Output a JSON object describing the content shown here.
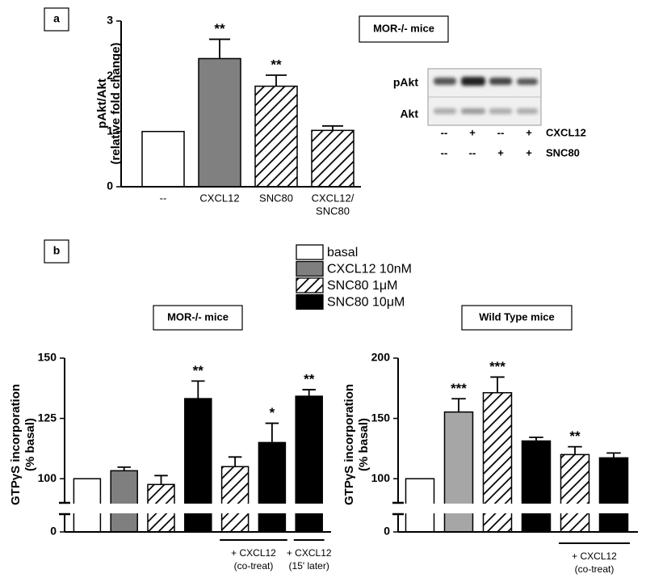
{
  "chart_data": [
    {
      "type": "bar",
      "panel": "a",
      "title": "MOR-/- mice",
      "ylabel": [
        "pAkt/Akt",
        "(relative fold change)"
      ],
      "categories": [
        [
          "--"
        ],
        [
          "CXCL12"
        ],
        [
          "SNC80"
        ],
        [
          "CXCL12/",
          "SNC80"
        ]
      ],
      "values": [
        1,
        2.32,
        1.82,
        1.02
      ],
      "errors": [
        null,
        0.35,
        0.2,
        0.08
      ],
      "stars": [
        null,
        "**",
        "**",
        null
      ],
      "colors": [
        "#ffffff",
        "#808080",
        "#ffffff",
        "#ffffff"
      ],
      "hatched": [
        false,
        false,
        true,
        true
      ],
      "ylim": [
        0,
        3
      ],
      "yticks": [
        0,
        1,
        2,
        3
      ]
    },
    {
      "type": "bar",
      "panel": "b",
      "title": "MOR-/- mice",
      "ylabel": [
        "GTPγS incorporation",
        "(% basal)"
      ],
      "categories": [
        null,
        null,
        null,
        null,
        null,
        null,
        null
      ],
      "series": [
        {
          "name": "basal",
          "color": "#ffffff",
          "hatched": false,
          "values": [
            100,
            null,
            null,
            null,
            null,
            null,
            null
          ],
          "errors": [
            null,
            null,
            null,
            null,
            null,
            null,
            null
          ]
        },
        {
          "name": "CXCL12 10nM",
          "color": "#7f7f7f",
          "hatched": false,
          "values": [
            null,
            103.3,
            null,
            null,
            null,
            null,
            null
          ],
          "errors": [
            null,
            1.5,
            null,
            null,
            null,
            null,
            null
          ]
        },
        {
          "name": "SNC80 1μM",
          "color": "#ffffff",
          "hatched": true,
          "values": [
            null,
            null,
            97.6,
            null,
            105,
            null,
            null
          ],
          "errors": [
            null,
            null,
            3.7,
            null,
            4,
            null,
            null
          ]
        },
        {
          "name": "SNC80 10μM",
          "color": "#000000",
          "hatched": false,
          "values": [
            null,
            null,
            null,
            133.2,
            null,
            115,
            134.2
          ],
          "errors": [
            null,
            null,
            null,
            7.3,
            null,
            8,
            2.7
          ]
        }
      ],
      "stars": [
        null,
        null,
        null,
        "**",
        null,
        "*",
        "**"
      ],
      "groups": [
        {
          "bars": [
            4,
            5
          ],
          "label": [
            "+ CXCL12",
            "(co-treat)"
          ]
        },
        {
          "bars": [
            6,
            6
          ],
          "label": [
            "+ CXCL12",
            "(15' later)"
          ]
        }
      ],
      "ylim": [
        0,
        150
      ],
      "ybreak": [
        10,
        90
      ],
      "yticks": [
        0,
        100,
        125,
        150
      ]
    },
    {
      "type": "bar",
      "title": "Wild Type mice",
      "ylabel": [
        "GTPγS incorporation",
        "(% basal)"
      ],
      "categories": [
        null,
        null,
        null,
        null,
        null,
        null
      ],
      "series": [
        {
          "color": "#ffffff",
          "hatched": false,
          "values": [
            100,
            null,
            null,
            null,
            null,
            null
          ],
          "errors": [
            null,
            null,
            null,
            null,
            null,
            null
          ]
        },
        {
          "color": "#a6a6a6",
          "hatched": false,
          "values": [
            null,
            155.3,
            null,
            null,
            null,
            null
          ],
          "errors": [
            null,
            11,
            null,
            null,
            null,
            null
          ]
        },
        {
          "color": "#ffffff",
          "hatched": true,
          "values": [
            null,
            null,
            171.3,
            null,
            120,
            null
          ],
          "errors": [
            null,
            null,
            13,
            null,
            6.5,
            null
          ]
        },
        {
          "color": "#000000",
          "hatched": false,
          "values": [
            null,
            null,
            null,
            131.3,
            null,
            117.3
          ],
          "errors": [
            null,
            null,
            null,
            3,
            null,
            4
          ]
        }
      ],
      "stars": [
        null,
        "***",
        "***",
        null,
        "**",
        null
      ],
      "groups": [
        {
          "bars": [
            4,
            5
          ],
          "label": [
            "+ CXCL12",
            "(co-treat)"
          ]
        }
      ],
      "ylim": [
        0,
        200
      ],
      "ybreak": [
        10,
        80
      ],
      "yticks": [
        0,
        100,
        150,
        200
      ]
    }
  ],
  "blot": {
    "rows": [
      "pAkt",
      "Akt"
    ],
    "treatments": [
      {
        "name": "CXCL12",
        "signs": [
          "--",
          "+",
          "--",
          "+"
        ]
      },
      {
        "name": "SNC80",
        "signs": [
          "--",
          "--",
          "+",
          "+"
        ]
      }
    ]
  }
}
